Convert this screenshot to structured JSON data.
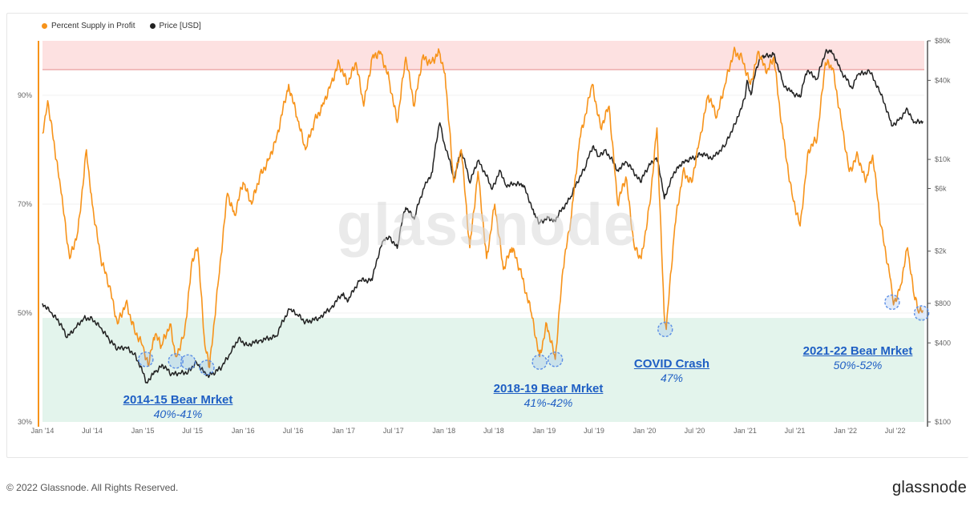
{
  "legend": {
    "profit_label": "Percent Supply in Profit",
    "price_label": "Price [USD]",
    "profit_color": "#f7931a",
    "price_color": "#222222"
  },
  "watermark": "glassnode",
  "footer": {
    "copyright": "© 2022 Glassnode. All Rights Reserved.",
    "logo": "glassnode"
  },
  "annotations": [
    {
      "title": "2014-15 Bear Mrket",
      "subtitle": "40%-41%"
    },
    {
      "title": "2018-19 Bear Mrket",
      "subtitle": "41%-42%"
    },
    {
      "title": "COVID Crash",
      "subtitle": "47%"
    },
    {
      "title": "2021-22 Bear Mrket",
      "subtitle": "50%-52%"
    }
  ],
  "colors": {
    "zone_high": "#fde1e1",
    "zone_low": "#e3f4ec",
    "zone_high_line": "#e58b8b",
    "marker": "#5b8ee6"
  },
  "chart_data": {
    "type": "line",
    "x_ticks": [
      "Jan '14",
      "Jul '14",
      "Jan '15",
      "Jul '15",
      "Jan '16",
      "Jul '16",
      "Jan '17",
      "Jul '17",
      "Jan '18",
      "Jul '18",
      "Jan '19",
      "Jul '19",
      "Jan '20",
      "Jul '20",
      "Jan '21",
      "Jul '21",
      "Jan '22",
      "Jul '22"
    ],
    "y_left_ticks": [
      "90%",
      "70%",
      "50%",
      "30%"
    ],
    "y_right_ticks": [
      "$80k",
      "$40k",
      "$10k",
      "$6k",
      "$2k",
      "$800",
      "$400",
      "$100"
    ],
    "y_left_range": [
      30,
      100
    ],
    "y_right_range_log": [
      100,
      80000
    ],
    "x_range": [
      "2014-01-01",
      "2022-10-15"
    ],
    "zones": {
      "high_above_pct": 94.7,
      "low_below_pct": 49.1
    },
    "series": [
      {
        "name": "Percent Supply in Profit",
        "axis": "left",
        "points": [
          [
            "2014-01-01",
            83
          ],
          [
            "2014-01-20",
            89
          ],
          [
            "2014-02-15",
            80
          ],
          [
            "2014-03-10",
            72
          ],
          [
            "2014-04-10",
            60
          ],
          [
            "2014-05-10",
            65
          ],
          [
            "2014-06-10",
            80
          ],
          [
            "2014-07-01",
            70
          ],
          [
            "2014-08-01",
            60
          ],
          [
            "2014-09-01",
            55
          ],
          [
            "2014-10-01",
            48
          ],
          [
            "2014-11-01",
            52
          ],
          [
            "2014-12-01",
            47
          ],
          [
            "2015-01-01",
            44
          ],
          [
            "2015-01-20",
            40.5
          ],
          [
            "2015-02-15",
            46
          ],
          [
            "2015-03-10",
            44
          ],
          [
            "2015-04-10",
            48
          ],
          [
            "2015-05-01",
            42
          ],
          [
            "2015-06-01",
            46
          ],
          [
            "2015-07-01",
            60
          ],
          [
            "2015-07-20",
            62
          ],
          [
            "2015-08-15",
            44
          ],
          [
            "2015-09-01",
            40
          ],
          [
            "2015-10-01",
            55
          ],
          [
            "2015-11-05",
            72
          ],
          [
            "2015-12-01",
            68
          ],
          [
            "2016-01-01",
            74
          ],
          [
            "2016-02-01",
            70
          ],
          [
            "2016-03-01",
            75
          ],
          [
            "2016-04-01",
            78
          ],
          [
            "2016-05-01",
            82
          ],
          [
            "2016-06-15",
            92
          ],
          [
            "2016-07-15",
            86
          ],
          [
            "2016-08-15",
            80
          ],
          [
            "2016-09-15",
            85
          ],
          [
            "2016-10-15",
            88
          ],
          [
            "2016-11-15",
            92
          ],
          [
            "2016-12-15",
            96
          ],
          [
            "2017-01-15",
            92
          ],
          [
            "2017-02-15",
            96
          ],
          [
            "2017-03-15",
            88
          ],
          [
            "2017-04-15",
            97
          ],
          [
            "2017-05-15",
            98
          ],
          [
            "2017-06-15",
            93
          ],
          [
            "2017-07-15",
            85
          ],
          [
            "2017-08-15",
            97
          ],
          [
            "2017-09-15",
            88
          ],
          [
            "2017-10-15",
            97
          ],
          [
            "2017-11-15",
            96
          ],
          [
            "2017-12-15",
            98
          ],
          [
            "2018-01-05",
            94
          ],
          [
            "2018-02-05",
            74
          ],
          [
            "2018-03-05",
            80
          ],
          [
            "2018-04-05",
            62
          ],
          [
            "2018-05-05",
            76
          ],
          [
            "2018-06-05",
            60
          ],
          [
            "2018-07-05",
            70
          ],
          [
            "2018-08-05",
            58
          ],
          [
            "2018-09-05",
            62
          ],
          [
            "2018-10-05",
            58
          ],
          [
            "2018-11-15",
            50
          ],
          [
            "2018-12-15",
            42
          ],
          [
            "2019-01-10",
            48
          ],
          [
            "2019-02-10",
            41.5
          ],
          [
            "2019-03-10",
            58
          ],
          [
            "2019-04-10",
            68
          ],
          [
            "2019-05-10",
            82
          ],
          [
            "2019-06-25",
            92
          ],
          [
            "2019-07-25",
            84
          ],
          [
            "2019-08-25",
            88
          ],
          [
            "2019-09-25",
            70
          ],
          [
            "2019-10-25",
            75
          ],
          [
            "2019-11-25",
            62
          ],
          [
            "2019-12-20",
            60
          ],
          [
            "2020-01-20",
            70
          ],
          [
            "2020-02-15",
            84
          ],
          [
            "2020-03-12",
            50
          ],
          [
            "2020-03-20",
            47
          ],
          [
            "2020-04-20",
            66
          ],
          [
            "2020-05-20",
            76
          ],
          [
            "2020-06-20",
            74
          ],
          [
            "2020-07-20",
            82
          ],
          [
            "2020-08-20",
            90
          ],
          [
            "2020-09-20",
            86
          ],
          [
            "2020-10-20",
            92
          ],
          [
            "2020-11-20",
            98
          ],
          [
            "2020-12-20",
            97
          ],
          [
            "2021-01-20",
            92
          ],
          [
            "2021-02-20",
            98
          ],
          [
            "2021-03-20",
            94
          ],
          [
            "2021-04-15",
            97
          ],
          [
            "2021-05-20",
            82
          ],
          [
            "2021-06-20",
            72
          ],
          [
            "2021-07-20",
            66
          ],
          [
            "2021-08-20",
            80
          ],
          [
            "2021-09-20",
            82
          ],
          [
            "2021-10-20",
            96
          ],
          [
            "2021-11-15",
            95
          ],
          [
            "2021-12-15",
            86
          ],
          [
            "2022-01-15",
            76
          ],
          [
            "2022-02-15",
            79
          ],
          [
            "2022-03-15",
            74
          ],
          [
            "2022-04-10",
            79
          ],
          [
            "2022-05-10",
            66
          ],
          [
            "2022-06-15",
            56
          ],
          [
            "2022-06-25",
            51.5
          ],
          [
            "2022-07-20",
            55
          ],
          [
            "2022-08-15",
            62
          ],
          [
            "2022-09-05",
            54
          ],
          [
            "2022-09-25",
            50
          ],
          [
            "2022-10-10",
            50.5
          ]
        ]
      },
      {
        "name": "Price [USD]",
        "axis": "right",
        "points": [
          [
            "2014-01-01",
            800
          ],
          [
            "2014-02-01",
            680
          ],
          [
            "2014-03-01",
            580
          ],
          [
            "2014-04-01",
            440
          ],
          [
            "2014-05-01",
            520
          ],
          [
            "2014-06-01",
            620
          ],
          [
            "2014-07-01",
            610
          ],
          [
            "2014-08-01",
            520
          ],
          [
            "2014-09-01",
            420
          ],
          [
            "2014-10-01",
            360
          ],
          [
            "2014-11-01",
            370
          ],
          [
            "2014-12-01",
            330
          ],
          [
            "2015-01-14",
            200
          ],
          [
            "2015-02-15",
            240
          ],
          [
            "2015-03-15",
            270
          ],
          [
            "2015-04-15",
            230
          ],
          [
            "2015-05-15",
            235
          ],
          [
            "2015-06-15",
            240
          ],
          [
            "2015-07-15",
            285
          ],
          [
            "2015-08-20",
            225
          ],
          [
            "2015-09-15",
            235
          ],
          [
            "2015-10-15",
            260
          ],
          [
            "2015-11-15",
            330
          ],
          [
            "2015-12-15",
            430
          ],
          [
            "2016-01-15",
            385
          ],
          [
            "2016-03-01",
            415
          ],
          [
            "2016-05-01",
            450
          ],
          [
            "2016-06-18",
            720
          ],
          [
            "2016-07-15",
            660
          ],
          [
            "2016-08-15",
            575
          ],
          [
            "2016-10-01",
            615
          ],
          [
            "2016-11-15",
            730
          ],
          [
            "2016-12-31",
            960
          ],
          [
            "2017-01-15",
            820
          ],
          [
            "2017-03-01",
            1200
          ],
          [
            "2017-04-15",
            1200
          ],
          [
            "2017-05-25",
            2400
          ],
          [
            "2017-06-15",
            2600
          ],
          [
            "2017-07-15",
            2100
          ],
          [
            "2017-08-15",
            4300
          ],
          [
            "2017-09-15",
            3500
          ],
          [
            "2017-10-20",
            6000
          ],
          [
            "2017-11-20",
            8000
          ],
          [
            "2017-12-17",
            19000
          ],
          [
            "2018-01-01",
            13500
          ],
          [
            "2018-02-06",
            6900
          ],
          [
            "2018-03-05",
            11400
          ],
          [
            "2018-04-06",
            6600
          ],
          [
            "2018-05-05",
            9800
          ],
          [
            "2018-06-25",
            5900
          ],
          [
            "2018-07-25",
            8200
          ],
          [
            "2018-08-15",
            6300
          ],
          [
            "2018-09-15",
            6500
          ],
          [
            "2018-10-15",
            6400
          ],
          [
            "2018-11-25",
            3800
          ],
          [
            "2018-12-15",
            3300
          ],
          [
            "2019-01-15",
            3600
          ],
          [
            "2019-02-08",
            3400
          ],
          [
            "2019-04-05",
            5000
          ],
          [
            "2019-05-30",
            8600
          ],
          [
            "2019-06-26",
            12500
          ],
          [
            "2019-07-20",
            10500
          ],
          [
            "2019-08-10",
            11800
          ],
          [
            "2019-09-25",
            8300
          ],
          [
            "2019-10-27",
            9500
          ],
          [
            "2019-12-17",
            6700
          ],
          [
            "2020-01-15",
            8800
          ],
          [
            "2020-02-13",
            10300
          ],
          [
            "2020-03-13",
            5000
          ],
          [
            "2020-04-30",
            8800
          ],
          [
            "2020-06-01",
            9700
          ],
          [
            "2020-07-27",
            11000
          ],
          [
            "2020-09-05",
            10200
          ],
          [
            "2020-10-21",
            12800
          ],
          [
            "2020-11-30",
            19300
          ],
          [
            "2020-12-31",
            29000
          ],
          [
            "2021-01-08",
            40000
          ],
          [
            "2021-01-22",
            31000
          ],
          [
            "2021-02-21",
            57000
          ],
          [
            "2021-03-13",
            61000
          ],
          [
            "2021-04-14",
            63000
          ],
          [
            "2021-05-20",
            37000
          ],
          [
            "2021-06-22",
            32000
          ],
          [
            "2021-07-20",
            29800
          ],
          [
            "2021-08-15",
            47000
          ],
          [
            "2021-09-21",
            41000
          ],
          [
            "2021-10-20",
            65000
          ],
          [
            "2021-11-10",
            68000
          ],
          [
            "2021-12-15",
            47000
          ],
          [
            "2022-01-24",
            35000
          ],
          [
            "2022-02-15",
            44000
          ],
          [
            "2022-03-29",
            47000
          ],
          [
            "2022-05-10",
            31000
          ],
          [
            "2022-06-18",
            18000
          ],
          [
            "2022-07-15",
            20000
          ],
          [
            "2022-08-15",
            24000
          ],
          [
            "2022-09-06",
            19000
          ],
          [
            "2022-10-10",
            19500
          ]
        ]
      }
    ],
    "markers_pct": [
      [
        "2015-01-12",
        41.5
      ],
      [
        "2015-05-01",
        41.2
      ],
      [
        "2015-06-15",
        41
      ],
      [
        "2015-08-22",
        40
      ],
      [
        "2018-12-15",
        41
      ],
      [
        "2019-02-10",
        41.5
      ],
      [
        "2020-03-16",
        47
      ],
      [
        "2022-06-20",
        52
      ],
      [
        "2022-10-05",
        50
      ]
    ]
  }
}
